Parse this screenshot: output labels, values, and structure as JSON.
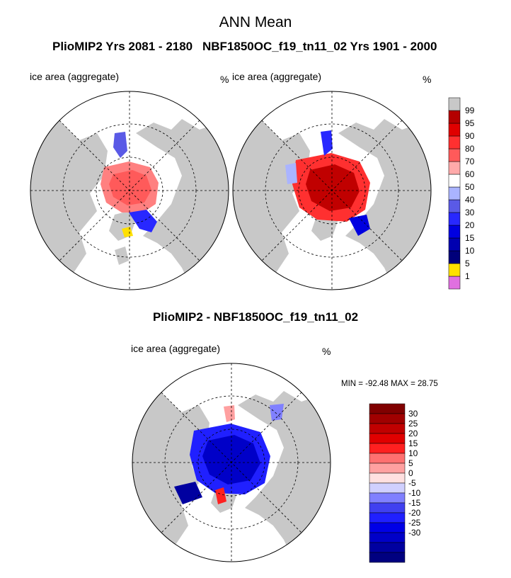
{
  "figure": {
    "title": "ANN Mean",
    "diff_title": "PlioMIP2 - NBF1850OC_f19_tn11_02",
    "minmax": "MIN = -92.48  MAX =  28.75"
  },
  "panels": [
    {
      "case_title": "PlioMIP2  Yrs 2081 - 2180",
      "variable": "ice area  (aggregate)",
      "units": "%"
    },
    {
      "case_title": "NBF1850OC_f19_tn11_02  Yrs 1901 - 2000",
      "variable": "ice area  (aggregate)",
      "units": "%"
    },
    {
      "variable": "ice area  (aggregate)",
      "units": "%"
    }
  ],
  "colors": {
    "land": "#c8c8c8",
    "ocean": "#ffffff",
    "abs_scale": [
      "#e070e0",
      "#ffe000",
      "#00007a",
      "#0000b0",
      "#0000e0",
      "#2828ff",
      "#5a5ae6",
      "#aab4ff",
      "#ffffff",
      "#ffaaaa",
      "#ff5a5a",
      "#ff3030",
      "#e00000",
      "#b40000",
      "#c8c8c8"
    ],
    "diff_scale": [
      "#000080",
      "#0000a0",
      "#0000c8",
      "#0000e6",
      "#2020ff",
      "#4040f0",
      "#8080ff",
      "#d0d0ff",
      "#ffe0e0",
      "#ffa0a0",
      "#ff7070",
      "#ff2020",
      "#e00000",
      "#c00000",
      "#a00000",
      "#800000"
    ]
  },
  "chart_data": {
    "type": "heatmap",
    "projection": "north polar stereographic",
    "abs_colorbar_labels": [
      "99",
      "95",
      "90",
      "80",
      "70",
      "60",
      "50",
      "40",
      "30",
      "20",
      "15",
      "10",
      "5",
      "1"
    ],
    "diff_colorbar_labels": [
      "30",
      "25",
      "20",
      "15",
      "10",
      "5",
      "0",
      "-5",
      "-10",
      "-15",
      "-20",
      "-25",
      "-30"
    ],
    "diff_min": -92.48,
    "diff_max": 28.75
  }
}
